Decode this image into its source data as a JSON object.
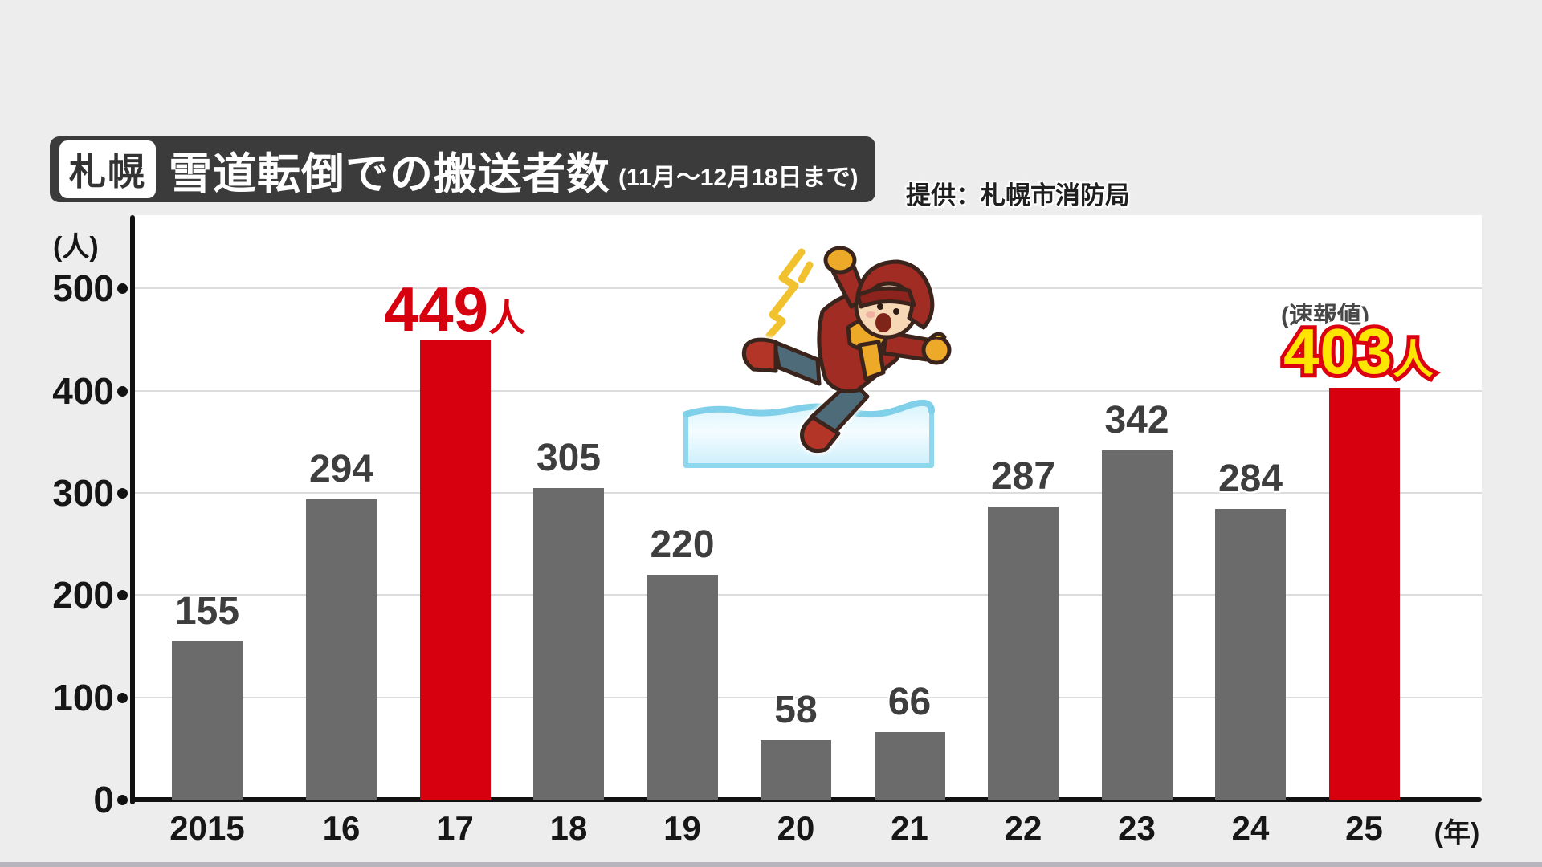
{
  "header": {
    "badge": "札幌",
    "title": "雪道転倒での搬送者数",
    "subtitle": "(11月〜12月18日まで)",
    "source": "提供：札幌市消防局"
  },
  "chart_data": {
    "type": "bar",
    "title": "札幌 雪道転倒での搬送者数（11月〜12月18日まで）",
    "ylabel": "(人)",
    "xlabel": "(年)",
    "categories": [
      "2015",
      "16",
      "17",
      "18",
      "19",
      "20",
      "21",
      "22",
      "23",
      "24",
      "25"
    ],
    "values": [
      155,
      294,
      449,
      305,
      220,
      58,
      66,
      287,
      342,
      284,
      403
    ],
    "yticks": [
      0,
      100,
      200,
      300,
      400,
      500
    ],
    "ylim": [
      0,
      500
    ],
    "grid": "horizontal",
    "highlight_indexes": [
      2,
      10
    ],
    "bar_color": "#6b6b6b",
    "highlight_color": "#d7000f",
    "annotations": {
      "y2017": {
        "num": "449",
        "unit": "人"
      },
      "y2025": {
        "num": "403",
        "unit": "人",
        "note": "(速報値)"
      }
    }
  },
  "illustration": {
    "name": "person-slipping-on-ice"
  }
}
